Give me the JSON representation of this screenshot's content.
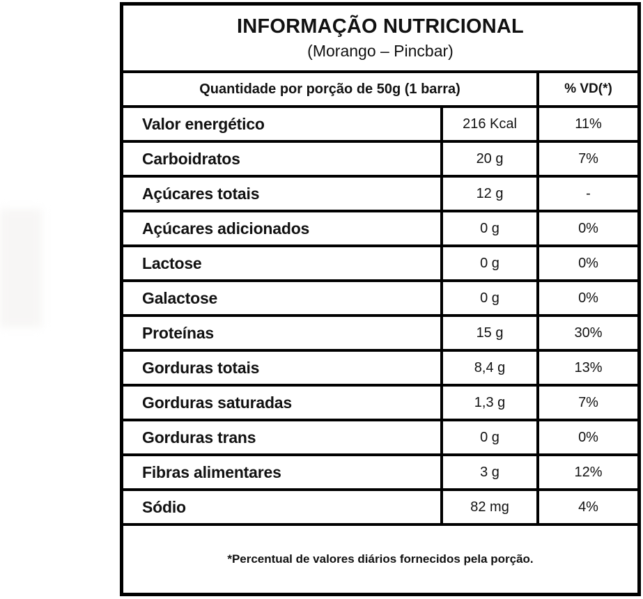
{
  "nutrition": {
    "title": "INFORMAÇÃO NUTRICIONAL",
    "subtitle": "(Morango – Pincbar)",
    "header": {
      "quantity_col": "Quantidade por porção de 50g (1 barra)",
      "vd_col": "% VD(*)"
    },
    "rows": [
      {
        "name": "Valor energético",
        "amount": "216 Kcal",
        "vd": "11%"
      },
      {
        "name": "Carboidratos",
        "amount": "20 g",
        "vd": "7%"
      },
      {
        "name": "Açúcares totais",
        "amount": "12 g",
        "vd": "-"
      },
      {
        "name": "Açúcares adicionados",
        "amount": "0 g",
        "vd": "0%"
      },
      {
        "name": "Lactose",
        "amount": "0 g",
        "vd": "0%"
      },
      {
        "name": "Galactose",
        "amount": "0 g",
        "vd": "0%"
      },
      {
        "name": "Proteínas",
        "amount": "15 g",
        "vd": "30%"
      },
      {
        "name": "Gorduras totais",
        "amount": "8,4 g",
        "vd": "13%"
      },
      {
        "name": "Gorduras saturadas",
        "amount": "1,3 g",
        "vd": "7%"
      },
      {
        "name": "Gorduras trans",
        "amount": "0 g",
        "vd": "0%"
      },
      {
        "name": "Fibras alimentares",
        "amount": "3 g",
        "vd": "12%"
      },
      {
        "name": "Sódio",
        "amount": "82 mg",
        "vd": "4%"
      }
    ],
    "footnote": "*Percentual de valores diários fornecidos pela porção.",
    "colors": {
      "border": "#000000",
      "text": "#111111",
      "background": "#ffffff"
    }
  }
}
